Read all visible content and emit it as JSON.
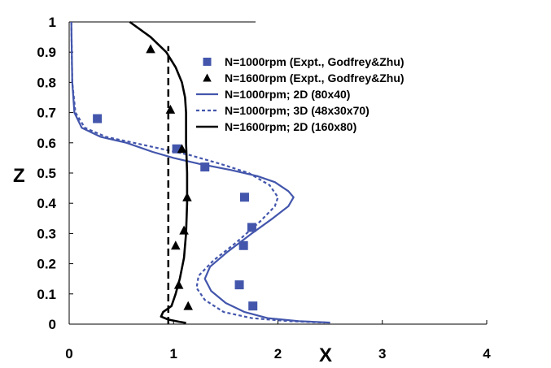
{
  "chart_data": {
    "type": "line",
    "title": "",
    "xlabel": "X",
    "ylabel": "Z",
    "xlim": [
      0,
      4
    ],
    "ylim": [
      0,
      1
    ],
    "xticks": [
      "0",
      "1",
      "2",
      "3",
      "4"
    ],
    "yticks": [
      "0",
      "0.1",
      "0.2",
      "0.3",
      "0.4",
      "0.5",
      "0.6",
      "0.7",
      "0.8",
      "0.9",
      "1"
    ],
    "legend_position": "top-right",
    "series": [
      {
        "name": "N=1000rpm (Expt., Godfrey&Zhu)",
        "style": "square-markers",
        "color": "#4356ac",
        "points": [
          [
            0.27,
            0.68
          ],
          [
            1.03,
            0.58
          ],
          [
            1.3,
            0.52
          ],
          [
            1.68,
            0.42
          ],
          [
            1.75,
            0.32
          ],
          [
            1.67,
            0.26
          ],
          [
            1.63,
            0.13
          ],
          [
            1.76,
            0.06
          ]
        ]
      },
      {
        "name": "N=1600rpm (Expt., Godfrey&Zhu)",
        "style": "triangle-markers",
        "color": "#000000",
        "points": [
          [
            0.78,
            0.91
          ],
          [
            0.97,
            0.71
          ],
          [
            1.08,
            0.58
          ],
          [
            1.13,
            0.42
          ],
          [
            1.1,
            0.31
          ],
          [
            1.02,
            0.26
          ],
          [
            1.05,
            0.13
          ],
          [
            1.14,
            0.06
          ]
        ]
      },
      {
        "name": "N=1000rpm; 2D (80x40)",
        "style": "solid",
        "color": "#4356ac",
        "points": [
          [
            0.02,
            1.0
          ],
          [
            0.03,
            0.8
          ],
          [
            0.05,
            0.7
          ],
          [
            0.12,
            0.65
          ],
          [
            0.3,
            0.62
          ],
          [
            0.55,
            0.6
          ],
          [
            0.8,
            0.57
          ],
          [
            1.0,
            0.55
          ],
          [
            1.25,
            0.53
          ],
          [
            1.55,
            0.51
          ],
          [
            1.8,
            0.49
          ],
          [
            1.97,
            0.47
          ],
          [
            2.1,
            0.44
          ],
          [
            2.15,
            0.42
          ],
          [
            2.1,
            0.39
          ],
          [
            1.95,
            0.35
          ],
          [
            1.75,
            0.3
          ],
          [
            1.52,
            0.24
          ],
          [
            1.35,
            0.19
          ],
          [
            1.3,
            0.15
          ],
          [
            1.36,
            0.11
          ],
          [
            1.5,
            0.07
          ],
          [
            1.68,
            0.04
          ],
          [
            1.9,
            0.02
          ],
          [
            2.2,
            0.01
          ],
          [
            2.5,
            0.005
          ]
        ]
      },
      {
        "name": "N=1000rpm; 3D (48x30x70)",
        "style": "dashed",
        "color": "#4356ac",
        "points": [
          [
            0.02,
            1.0
          ],
          [
            0.03,
            0.8
          ],
          [
            0.06,
            0.7
          ],
          [
            0.15,
            0.65
          ],
          [
            0.35,
            0.62
          ],
          [
            0.62,
            0.6
          ],
          [
            0.88,
            0.58
          ],
          [
            1.15,
            0.56
          ],
          [
            1.45,
            0.53
          ],
          [
            1.72,
            0.5
          ],
          [
            1.92,
            0.46
          ],
          [
            2.0,
            0.42
          ],
          [
            1.97,
            0.39
          ],
          [
            1.83,
            0.34
          ],
          [
            1.6,
            0.27
          ],
          [
            1.38,
            0.21
          ],
          [
            1.24,
            0.16
          ],
          [
            1.22,
            0.12
          ],
          [
            1.3,
            0.08
          ],
          [
            1.48,
            0.04
          ],
          [
            1.75,
            0.02
          ],
          [
            2.1,
            0.01
          ],
          [
            2.45,
            0.005
          ]
        ]
      },
      {
        "name": "N=1600rpm; 2D (160x80)",
        "style": "solid",
        "color": "#000000",
        "points": [
          [
            0.58,
            1.0
          ],
          [
            0.78,
            0.95
          ],
          [
            0.93,
            0.9
          ],
          [
            1.02,
            0.85
          ],
          [
            1.08,
            0.8
          ],
          [
            1.11,
            0.75
          ],
          [
            1.12,
            0.7
          ],
          [
            1.12,
            0.6
          ],
          [
            1.13,
            0.5
          ],
          [
            1.13,
            0.4
          ],
          [
            1.12,
            0.3
          ],
          [
            1.1,
            0.22
          ],
          [
            1.06,
            0.15
          ],
          [
            1.02,
            0.1
          ],
          [
            0.98,
            0.06
          ],
          [
            0.9,
            0.04
          ],
          [
            0.88,
            0.025
          ],
          [
            0.95,
            0.015
          ],
          [
            1.05,
            0.008
          ],
          [
            1.12,
            0.004
          ]
        ]
      },
      {
        "name": "",
        "style": "vertical-dashed-line",
        "color": "#000000",
        "points": [
          [
            0.95,
            0.0
          ],
          [
            0.95,
            0.92
          ]
        ]
      }
    ]
  }
}
